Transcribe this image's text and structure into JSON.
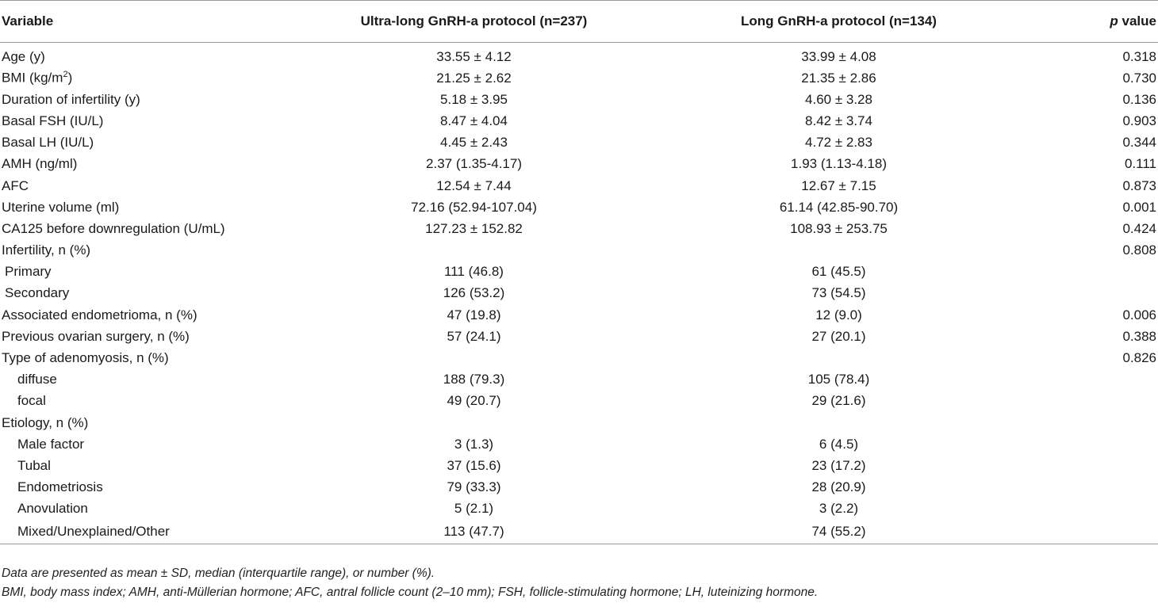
{
  "header": {
    "variable": "Variable",
    "ultra_long": "Ultra-long GnRH-a protocol (n=237)",
    "long": "Long GnRH-a protocol (n=134)",
    "p_italic": "p",
    "p_rest": " value"
  },
  "rows": [
    {
      "label": "Age (y)",
      "ultra": "33.55 ± 4.12",
      "long": "33.99 ± 4.08",
      "p": "0.318"
    },
    {
      "label": "BMI (kg/m",
      "label_sup": "2",
      "label_after": ")",
      "ultra": "21.25 ± 2.62",
      "long": "21.35 ± 2.86",
      "p": "0.730"
    },
    {
      "label": "Duration of infertility (y)",
      "ultra": "5.18 ± 3.95",
      "long": "4.60 ± 3.28",
      "p": "0.136"
    },
    {
      "label": "Basal FSH (IU/L)",
      "ultra": "8.47 ± 4.04",
      "long": "8.42 ± 3.74",
      "p": "0.903"
    },
    {
      "label": "Basal LH (IU/L)",
      "ultra": "4.45 ± 2.43",
      "long": "4.72 ± 2.83",
      "p": "0.344"
    },
    {
      "label": "AMH (ng/ml)",
      "ultra": "2.37 (1.35-4.17)",
      "long": "1.93 (1.13-4.18)",
      "p": "0.111"
    },
    {
      "label": "AFC",
      "ultra": "12.54 ± 7.44",
      "long": "12.67 ± 7.15",
      "p": "0.873"
    },
    {
      "label": "Uterine volume (ml)",
      "ultra": "72.16 (52.94-107.04)",
      "long": "61.14 (42.85-90.70)",
      "p": "0.001"
    },
    {
      "label": "CA125 before downregulation (U/mL)",
      "ultra": "127.23 ± 152.82",
      "long": "108.93 ± 253.75",
      "p": "0.424"
    },
    {
      "label": "Infertility, n (%)",
      "ultra": "",
      "long": "",
      "p": "0.808"
    },
    {
      "label": "Primary",
      "ultra": "111 (46.8)",
      "long": "61 (45.5)",
      "p": ""
    },
    {
      "label": "Secondary",
      "ultra": "126 (53.2)",
      "long": "73 (54.5)",
      "p": ""
    },
    {
      "label": "Associated endometrioma, n (%)",
      "ultra": "47 (19.8)",
      "long": "12 (9.0)",
      "p": "0.006"
    },
    {
      "label": "Previous ovarian surgery, n (%)",
      "ultra": "57 (24.1)",
      "long": "27 (20.1)",
      "p": "0.388"
    },
    {
      "label": "Type of adenomyosis, n (%)",
      "ultra": "",
      "long": "",
      "p": "0.826"
    },
    {
      "label": "diffuse",
      "ultra": "188 (79.3)",
      "long": "105 (78.4)",
      "p": ""
    },
    {
      "label": "focal",
      "ultra": "49 (20.7)",
      "long": "29 (21.6)",
      "p": ""
    },
    {
      "label": "Etiology, n (%)",
      "ultra": "",
      "long": "",
      "p": ""
    },
    {
      "label": "Male factor",
      "ultra": "3 (1.3)",
      "long": "6 (4.5)",
      "p": ""
    },
    {
      "label": "Tubal",
      "ultra": "37 (15.6)",
      "long": "23 (17.2)",
      "p": ""
    },
    {
      "label": "Endometriosis",
      "ultra": "79 (33.3)",
      "long": "28 (20.9)",
      "p": ""
    },
    {
      "label": "Anovulation",
      "ultra": "5 (2.1)",
      "long": "3 (2.2)",
      "p": ""
    },
    {
      "label": "Mixed/Unexplained/Other",
      "ultra": "113 (47.7)",
      "long": "74 (55.2)",
      "p": ""
    }
  ],
  "footnotes": {
    "line1": "Data are presented as mean ± SD, median (interquartile range), or number (%).",
    "line2": "BMI, body mass index; AMH, anti-Müllerian hormone; AFC, antral follicle count (2–10 mm); FSH, follicle-stimulating hormone; LH, luteinizing hormone."
  }
}
